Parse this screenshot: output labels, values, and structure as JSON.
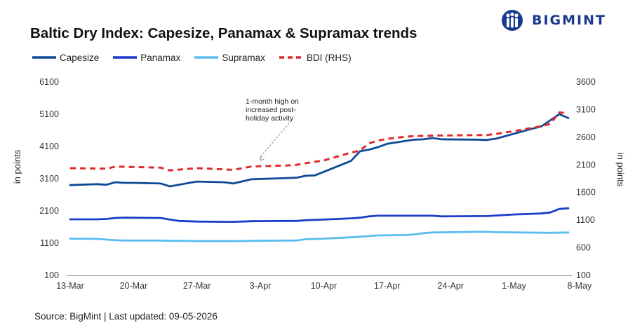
{
  "brand": {
    "name": "BIGMINT",
    "logo_icon": "people-circle-icon",
    "color": "#1a3a8f"
  },
  "source_note": "Source: BigMint | Last updated: 09-05-2026",
  "chart_data": {
    "type": "line",
    "title": "Baltic Dry Index: Capesize, Panamax & Supramax trends",
    "ylabel": "in points",
    "ylabel_right": "in points",
    "ylim": [
      100,
      6100
    ],
    "yticks": [
      100,
      1100,
      2100,
      3100,
      4100,
      5100,
      6100
    ],
    "ylim_right": [
      100,
      3600
    ],
    "yticks_right": [
      100,
      600,
      1100,
      1600,
      2100,
      2600,
      3100,
      3600
    ],
    "x_ticks": [
      "13-Mar",
      "20-Mar",
      "27-Mar",
      "3-Apr",
      "10-Apr",
      "17-Apr",
      "24-Apr",
      "1-May",
      "8-May"
    ],
    "grid": false,
    "legend_position": "top-left",
    "annotation": {
      "lines": [
        "1-month high on",
        "increased post-",
        "holiday activity"
      ],
      "arrow_to_day": 21
    },
    "series": [
      {
        "name": "Capesize",
        "axis": "left",
        "color": "#0d4a96",
        "style": "solid",
        "points": [
          [
            0,
            2900
          ],
          [
            3,
            2930
          ],
          [
            4,
            2910
          ],
          [
            5,
            2990
          ],
          [
            6,
            2970
          ],
          [
            7,
            2970
          ],
          [
            10,
            2950
          ],
          [
            11,
            2860
          ],
          [
            13,
            2960
          ],
          [
            14,
            3010
          ],
          [
            17,
            2990
          ],
          [
            18,
            2950
          ],
          [
            20,
            3080
          ],
          [
            24,
            3120
          ],
          [
            25,
            3130
          ],
          [
            26,
            3190
          ],
          [
            27,
            3200
          ],
          [
            31,
            3650
          ],
          [
            32,
            3950
          ],
          [
            33,
            4000
          ],
          [
            34,
            4080
          ],
          [
            35,
            4180
          ],
          [
            38,
            4310
          ],
          [
            39,
            4320
          ],
          [
            40,
            4360
          ],
          [
            41,
            4320
          ],
          [
            45,
            4310
          ],
          [
            46,
            4300
          ],
          [
            47,
            4340
          ],
          [
            51,
            4650
          ],
          [
            52,
            4720
          ],
          [
            54,
            5100
          ],
          [
            55,
            4980
          ]
        ]
      },
      {
        "name": "Panamax",
        "axis": "left",
        "color": "#1a3cc8",
        "style": "solid",
        "points": [
          [
            0,
            1840
          ],
          [
            3,
            1840
          ],
          [
            4,
            1850
          ],
          [
            5,
            1880
          ],
          [
            6,
            1890
          ],
          [
            10,
            1880
          ],
          [
            11,
            1830
          ],
          [
            12,
            1790
          ],
          [
            14,
            1770
          ],
          [
            17,
            1760
          ],
          [
            18,
            1760
          ],
          [
            19,
            1770
          ],
          [
            20,
            1780
          ],
          [
            24,
            1790
          ],
          [
            25,
            1790
          ],
          [
            26,
            1810
          ],
          [
            28,
            1830
          ],
          [
            31,
            1870
          ],
          [
            32,
            1890
          ],
          [
            33,
            1930
          ],
          [
            34,
            1950
          ],
          [
            38,
            1950
          ],
          [
            40,
            1950
          ],
          [
            41,
            1930
          ],
          [
            46,
            1940
          ],
          [
            49,
            1990
          ],
          [
            52,
            2020
          ],
          [
            53,
            2050
          ],
          [
            54,
            2160
          ],
          [
            55,
            2180
          ]
        ]
      },
      {
        "name": "Supramax",
        "axis": "left",
        "color": "#5bbcf0",
        "style": "solid",
        "points": [
          [
            0,
            1240
          ],
          [
            3,
            1230
          ],
          [
            5,
            1190
          ],
          [
            6,
            1180
          ],
          [
            10,
            1180
          ],
          [
            11,
            1170
          ],
          [
            13,
            1170
          ],
          [
            14,
            1160
          ],
          [
            17,
            1160
          ],
          [
            18,
            1160
          ],
          [
            20,
            1170
          ],
          [
            24,
            1180
          ],
          [
            25,
            1180
          ],
          [
            26,
            1220
          ],
          [
            28,
            1240
          ],
          [
            31,
            1280
          ],
          [
            32,
            1300
          ],
          [
            33,
            1320
          ],
          [
            34,
            1340
          ],
          [
            37,
            1350
          ],
          [
            38,
            1370
          ],
          [
            39,
            1410
          ],
          [
            40,
            1430
          ],
          [
            45,
            1450
          ],
          [
            46,
            1450
          ],
          [
            47,
            1440
          ],
          [
            53,
            1420
          ],
          [
            55,
            1430
          ]
        ]
      },
      {
        "name": "BDI (RHS)",
        "axis": "right",
        "color": "#e02b2b",
        "style": "dashed",
        "points": [
          [
            0,
            2040
          ],
          [
            4,
            2030
          ],
          [
            5,
            2070
          ],
          [
            7,
            2060
          ],
          [
            10,
            2050
          ],
          [
            11,
            2000
          ],
          [
            14,
            2040
          ],
          [
            18,
            2010
          ],
          [
            20,
            2070
          ],
          [
            24,
            2090
          ],
          [
            25,
            2100
          ],
          [
            26,
            2130
          ],
          [
            28,
            2180
          ],
          [
            31,
            2320
          ],
          [
            32,
            2360
          ],
          [
            33,
            2490
          ],
          [
            34,
            2540
          ],
          [
            35,
            2570
          ],
          [
            37,
            2610
          ],
          [
            38,
            2620
          ],
          [
            40,
            2630
          ],
          [
            46,
            2640
          ],
          [
            47,
            2660
          ],
          [
            49,
            2710
          ],
          [
            52,
            2800
          ],
          [
            53,
            2840
          ],
          [
            54,
            3050
          ],
          [
            55,
            3030
          ]
        ]
      }
    ]
  }
}
